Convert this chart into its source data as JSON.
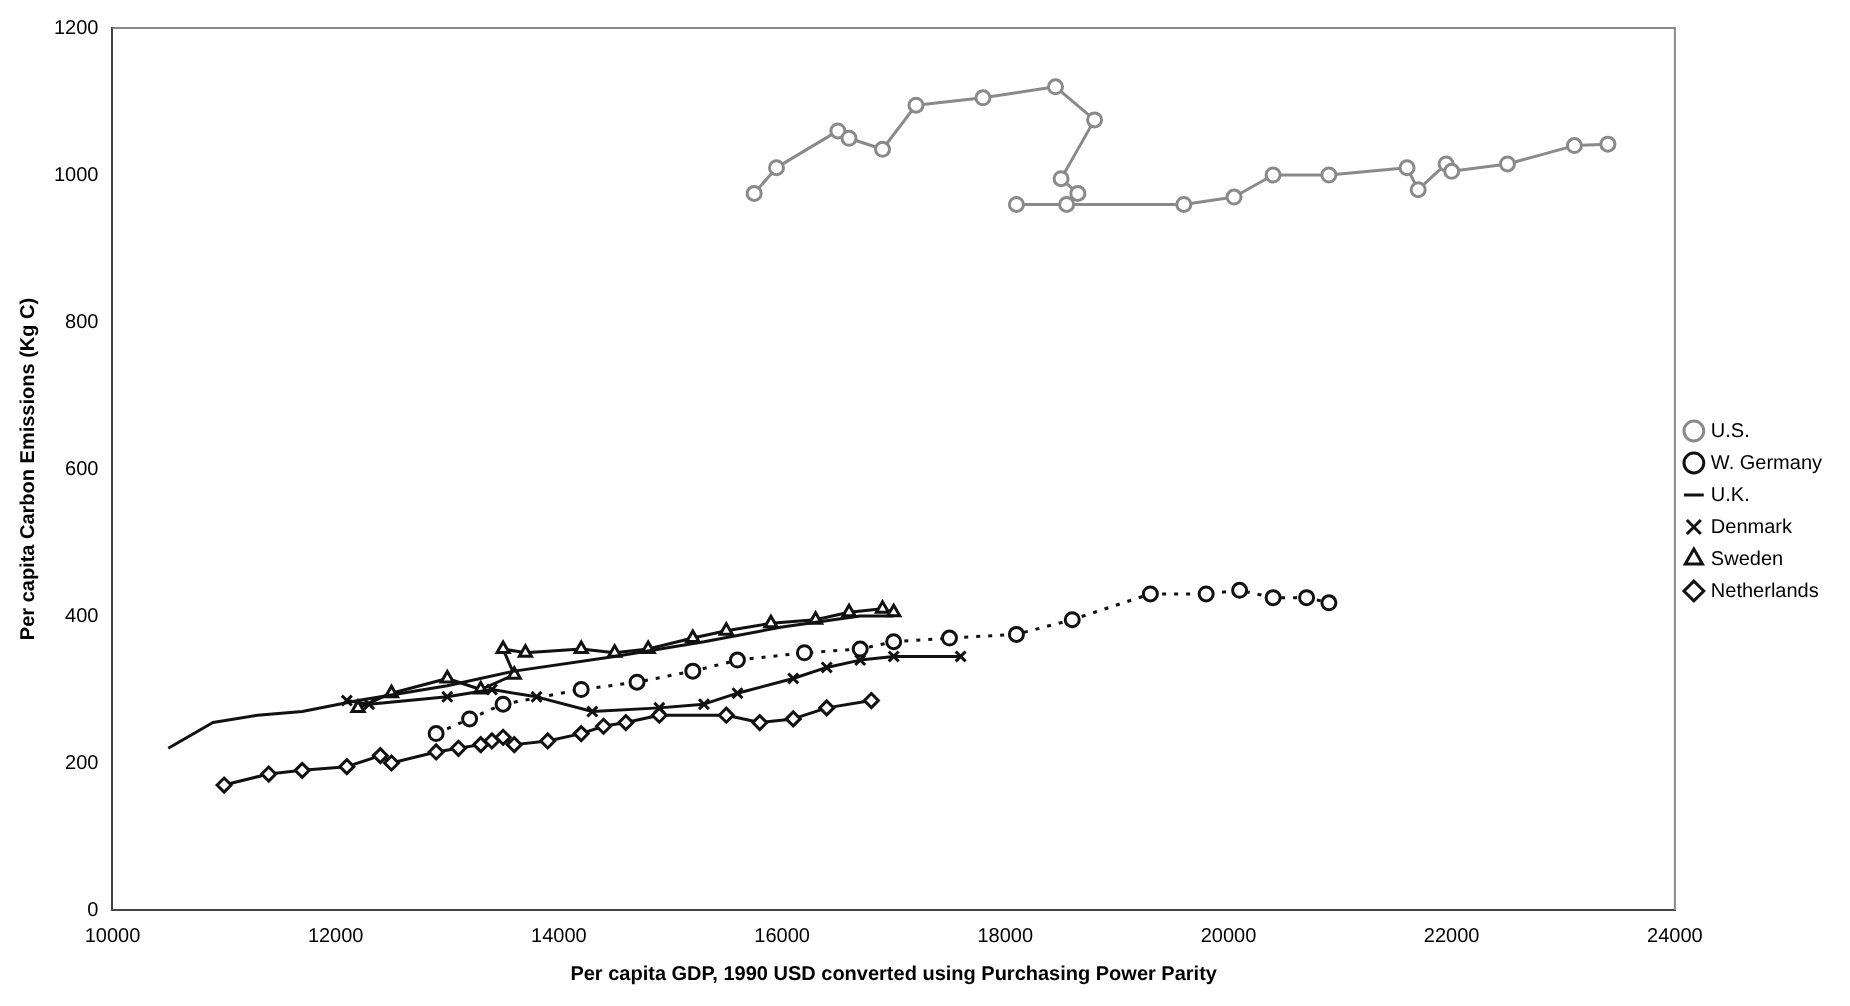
{
  "chart_data": {
    "type": "line",
    "xlabel": "Per capita GDP, 1990 USD converted using Purchasing Power Parity",
    "ylabel": "Per capita Carbon Emissions (Kg C)",
    "xlim": [
      10000,
      24000
    ],
    "xticks": [
      10000,
      12000,
      14000,
      16000,
      18000,
      20000,
      22000,
      24000
    ],
    "ylim": [
      0,
      1200
    ],
    "yticks": [
      0,
      200,
      400,
      600,
      800,
      1000,
      1200
    ],
    "grid": false,
    "legend": "right",
    "series": [
      {
        "name": "U.S.",
        "color": "#8a8a8a",
        "marker": "circle",
        "line_style": "solid",
        "x": [
          15750,
          15950,
          16500,
          16600,
          16900,
          17200,
          17800,
          18450,
          18800,
          18500,
          18650,
          18550,
          18100,
          19600,
          20050,
          20400,
          20900,
          21600,
          21700,
          21950,
          22000,
          22500,
          23100,
          23400
        ],
        "values": [
          975,
          1010,
          1060,
          1050,
          1035,
          1095,
          1105,
          1120,
          1075,
          995,
          975,
          960,
          960,
          960,
          970,
          1000,
          1000,
          1010,
          980,
          1015,
          1005,
          1015,
          1040,
          1042
        ]
      },
      {
        "name": "W. Germany",
        "color": "#111111",
        "marker": "circle",
        "line_style": "dotted",
        "x": [
          12900,
          13200,
          13500,
          14200,
          14700,
          15200,
          15600,
          16200,
          16700,
          17000,
          17500,
          18100,
          18600,
          19300,
          19800,
          20100,
          20400,
          20700,
          20900
        ],
        "values": [
          240,
          260,
          280,
          300,
          310,
          325,
          340,
          350,
          355,
          365,
          370,
          375,
          395,
          430,
          430,
          435,
          425,
          425,
          418
        ]
      },
      {
        "name": "U.K.",
        "color": "#111111",
        "marker": "none",
        "line_style": "solid",
        "x": [
          10500,
          10900,
          11300,
          11700,
          12200,
          13000,
          13600,
          14500,
          15300,
          16000,
          16700,
          17000
        ],
        "values": [
          220,
          255,
          265,
          270,
          285,
          305,
          325,
          345,
          365,
          385,
          400,
          400
        ]
      },
      {
        "name": "Denmark",
        "color": "#111111",
        "marker": "cross",
        "line_style": "solid",
        "x": [
          12100,
          12300,
          13000,
          13400,
          13800,
          14300,
          14900,
          15300,
          15600,
          16100,
          16400,
          16700,
          17000,
          17600
        ],
        "values": [
          285,
          280,
          290,
          300,
          290,
          270,
          275,
          280,
          295,
          315,
          330,
          340,
          345,
          345
        ]
      },
      {
        "name": "Sweden",
        "color": "#111111",
        "marker": "triangle",
        "line_style": "solid",
        "x": [
          12200,
          12500,
          13000,
          13300,
          13600,
          13500,
          13700,
          14200,
          14500,
          14800,
          15200,
          15500,
          15900,
          16300,
          16600,
          16900,
          17000
        ],
        "values": [
          275,
          295,
          315,
          300,
          320,
          355,
          350,
          355,
          350,
          355,
          370,
          380,
          390,
          395,
          405,
          410,
          405
        ]
      },
      {
        "name": "Netherlands",
        "color": "#111111",
        "marker": "diamond",
        "line_style": "solid",
        "x": [
          11000,
          11400,
          11700,
          12100,
          12400,
          12500,
          12900,
          13100,
          13300,
          13400,
          13500,
          13600,
          13900,
          14200,
          14400,
          14600,
          14900,
          15500,
          15800,
          16100,
          16400,
          16800
        ],
        "values": [
          170,
          185,
          190,
          195,
          210,
          200,
          215,
          220,
          225,
          230,
          235,
          225,
          230,
          240,
          250,
          255,
          265,
          265,
          255,
          260,
          275,
          285
        ]
      }
    ]
  }
}
